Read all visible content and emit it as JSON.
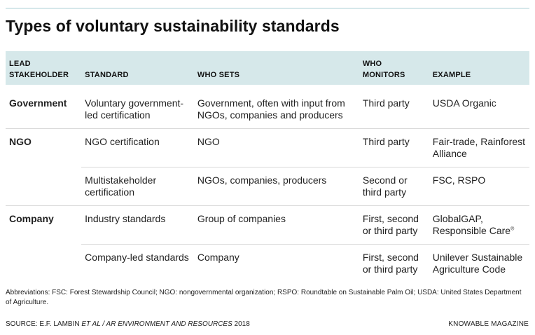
{
  "title": "Types of voluntary sustainability standards",
  "headers": [
    "LEAD STAKEHOLDER",
    "STANDARD",
    "WHO SETS",
    "WHO MONITORS",
    "EXAMPLE"
  ],
  "rows": [
    {
      "stakeholder": "Government",
      "standard": "Voluntary government-led certification",
      "who_sets": "Government, often with input from NGOs, companies and producers",
      "who_monitors": "Third party",
      "example": "USDA Organic"
    },
    {
      "stakeholder": "NGO",
      "standard": "NGO certification",
      "who_sets": "NGO",
      "who_monitors": "Third party",
      "example": "Fair-trade, Rainforest Alliance"
    },
    {
      "stakeholder": "",
      "standard": "Multistakeholder certification",
      "who_sets": "NGOs, companies, producers",
      "who_monitors": "Second or third party",
      "example": "FSC, RSPO"
    },
    {
      "stakeholder": "Company",
      "standard": "Industry standards",
      "who_sets": "Group of companies",
      "who_monitors": "First, second or third party",
      "example": "GlobalGAP, Responsible Care"
    },
    {
      "stakeholder": "",
      "standard": "Company-led standards",
      "who_sets": "Company",
      "who_monitors": "First, second or third party",
      "example": "Unilever Sustainable Agriculture Code"
    }
  ],
  "registered_mark": "®",
  "abbreviations": "Abbreviations: FSC: Forest Stewardship Council; NGO: nongovernmental organization; RSPO: Roundtable on Sustainable Palm Oil; USDA: United States Department of Agriculture.",
  "source_prefix": "SOURCE: E.F. LAMBIN",
  "source_italic": "ET AL / AR ENVIRONMENT AND RESOURCES",
  "source_year": "2018",
  "credit": "KNOWABLE MAGAZINE",
  "colors": {
    "header_bg": "#d6e8ea",
    "divider": "#d9d9d9",
    "text": "#111111"
  }
}
